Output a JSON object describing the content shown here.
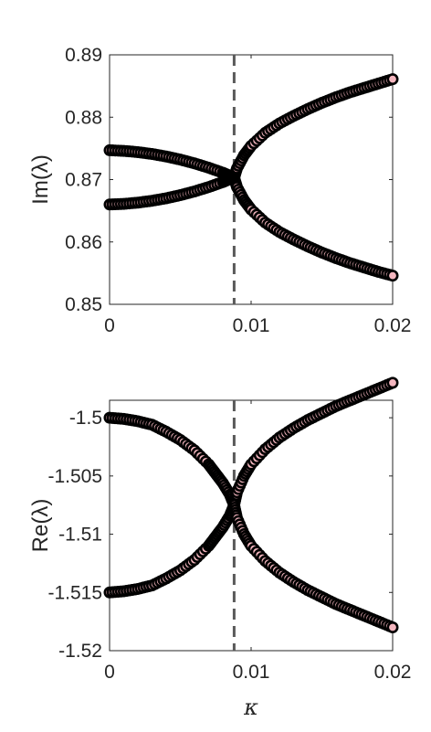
{
  "chart_data": [
    {
      "type": "scatter",
      "ylabel": "Im(λ)",
      "xlabel": "",
      "xlim": [
        0,
        0.02
      ],
      "ylim": [
        0.85,
        0.89
      ],
      "xticks": [
        "0",
        "0.01",
        "0.02"
      ],
      "yticks": [
        "0.85",
        "0.86",
        "0.87",
        "0.88",
        "0.89"
      ],
      "x_tick_values": [
        0,
        0.01,
        0.02
      ],
      "y_tick_values": [
        0.85,
        0.86,
        0.87,
        0.88,
        0.89
      ],
      "vline": 0.0088,
      "grid": false,
      "marker_fill": "#f4b6bf",
      "marker_edge": "#000000",
      "vline_color": "#595959",
      "series": [
        {
          "x": [
            0,
            0.001,
            0.002,
            0.003,
            0.004,
            0.005,
            0.006,
            0.007,
            0.008,
            0.0085,
            0.0088
          ],
          "y": [
            0.8747,
            0.8746,
            0.8744,
            0.8741,
            0.8737,
            0.8732,
            0.8726,
            0.8719,
            0.8711,
            0.8706,
            0.8703
          ]
        },
        {
          "x": [
            0,
            0.001,
            0.002,
            0.003,
            0.004,
            0.005,
            0.006,
            0.007,
            0.008,
            0.0085,
            0.0088
          ],
          "y": [
            0.866,
            0.8661,
            0.8663,
            0.8666,
            0.867,
            0.8675,
            0.8681,
            0.8688,
            0.8696,
            0.8701,
            0.8703
          ]
        },
        {
          "x": [
            0.0088,
            0.009,
            0.0095,
            0.01,
            0.011,
            0.012,
            0.013,
            0.014,
            0.015,
            0.016,
            0.017,
            0.018,
            0.019,
            0.02
          ],
          "y": [
            0.8703,
            0.8718,
            0.8739,
            0.8754,
            0.8775,
            0.879,
            0.8802,
            0.8813,
            0.8823,
            0.8832,
            0.884,
            0.8847,
            0.8854,
            0.8861
          ]
        },
        {
          "x": [
            0.0088,
            0.009,
            0.0095,
            0.01,
            0.011,
            0.012,
            0.013,
            0.014,
            0.015,
            0.016,
            0.017,
            0.018,
            0.019,
            0.02
          ],
          "y": [
            0.8703,
            0.8688,
            0.8667,
            0.8652,
            0.8631,
            0.8616,
            0.8604,
            0.8593,
            0.8583,
            0.8574,
            0.8566,
            0.8559,
            0.8552,
            0.8546
          ]
        }
      ]
    },
    {
      "type": "scatter",
      "ylabel": "Re(λ)",
      "xlabel": "κ",
      "xlim": [
        0,
        0.02
      ],
      "ylim": [
        -1.52,
        -1.4985
      ],
      "xticks": [
        "0",
        "0.01",
        "0.02"
      ],
      "yticks": [
        "-1.5",
        "-1.505",
        "-1.51",
        "-1.515",
        "-1.52"
      ],
      "x_tick_values": [
        0,
        0.01,
        0.02
      ],
      "y_tick_values": [
        -1.5,
        -1.505,
        -1.51,
        -1.515,
        -1.52
      ],
      "vline": 0.0088,
      "grid": false,
      "marker_fill": "#f4b6bf",
      "marker_edge": "#000000",
      "vline_color": "#595959",
      "series": [
        {
          "x": [
            0,
            0.001,
            0.002,
            0.003,
            0.004,
            0.005,
            0.006,
            0.007,
            0.0075,
            0.008,
            0.0085,
            0.0088
          ],
          "y": [
            -1.5,
            -1.5001,
            -1.5003,
            -1.5006,
            -1.5012,
            -1.5019,
            -1.5028,
            -1.504,
            -1.5048,
            -1.5056,
            -1.5066,
            -1.5075
          ]
        },
        {
          "x": [
            0,
            0.001,
            0.002,
            0.003,
            0.004,
            0.005,
            0.006,
            0.007,
            0.0075,
            0.008,
            0.0085,
            0.0088
          ],
          "y": [
            -1.515,
            -1.5149,
            -1.5147,
            -1.5144,
            -1.5138,
            -1.5131,
            -1.5122,
            -1.511,
            -1.5102,
            -1.5094,
            -1.5084,
            -1.5075
          ]
        },
        {
          "x": [
            0.0088,
            0.009,
            0.0095,
            0.01,
            0.011,
            0.012,
            0.013,
            0.014,
            0.015,
            0.016,
            0.017,
            0.018,
            0.019,
            0.02
          ],
          "y": [
            -1.5075,
            -1.5064,
            -1.505,
            -1.504,
            -1.5027,
            -1.5017,
            -1.5009,
            -1.5002,
            -1.4996,
            -1.499,
            -1.4985,
            -1.498,
            -1.4975,
            -1.497
          ]
        },
        {
          "x": [
            0.0088,
            0.009,
            0.0095,
            0.01,
            0.011,
            0.012,
            0.013,
            0.014,
            0.015,
            0.016,
            0.017,
            0.018,
            0.019,
            0.02
          ],
          "y": [
            -1.5075,
            -1.5086,
            -1.51,
            -1.511,
            -1.5123,
            -1.5133,
            -1.5141,
            -1.5148,
            -1.5154,
            -1.516,
            -1.5165,
            -1.517,
            -1.5175,
            -1.518
          ]
        }
      ]
    }
  ]
}
